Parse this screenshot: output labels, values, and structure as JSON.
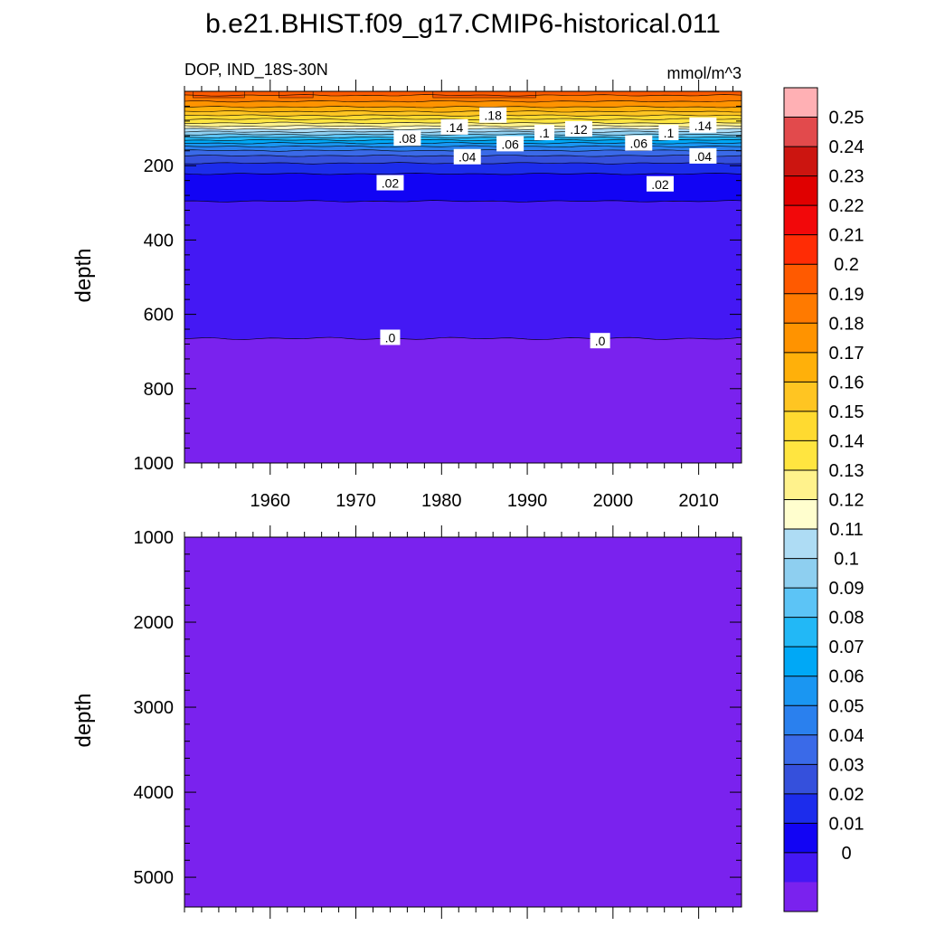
{
  "title": "b.e21.BHIST.f09_g17.CMIP6-historical.011",
  "chart_data": {
    "type": "heatmap",
    "variable_label": "DOP, IND_18S-30N",
    "units": "mmol/m^3",
    "xlim": [
      1950,
      2015
    ],
    "x_ticks": [
      1960,
      1970,
      1980,
      1990,
      2000,
      2010
    ],
    "panels": [
      {
        "ylabel": "depth",
        "ylim": [
          0,
          1000
        ],
        "y_ticks": [
          200,
          400,
          600,
          800,
          1000
        ],
        "contour_labels": [
          {
            "text": ".18",
            "x": 1986,
            "depth": 65
          },
          {
            "text": ".14",
            "x": 1981.5,
            "depth": 97
          },
          {
            "text": ".14",
            "x": 2010.5,
            "depth": 92
          },
          {
            "text": ".12",
            "x": 1996,
            "depth": 102
          },
          {
            "text": ".1",
            "x": 1992,
            "depth": 112
          },
          {
            "text": ".1",
            "x": 2006.5,
            "depth": 112
          },
          {
            "text": ".08",
            "x": 1976,
            "depth": 127
          },
          {
            "text": ".06",
            "x": 1988,
            "depth": 142
          },
          {
            "text": ".06",
            "x": 2003,
            "depth": 140
          },
          {
            "text": ".04",
            "x": 1983,
            "depth": 177
          },
          {
            "text": ".04",
            "x": 2010.5,
            "depth": 175
          },
          {
            "text": ".02",
            "x": 1974,
            "depth": 247
          },
          {
            "text": ".02",
            "x": 2005.5,
            "depth": 250
          },
          {
            "text": ".0",
            "x": 1974,
            "depth": 663
          },
          {
            "text": ".0",
            "x": 1998.5,
            "depth": 672
          }
        ]
      },
      {
        "ylabel": "depth",
        "ylim": [
          1000,
          5350
        ],
        "y_ticks": [
          1000,
          2000,
          3000,
          4000,
          5000
        ],
        "fill_level": 0
      }
    ],
    "colorbar": {
      "levels": [
        "0.25",
        "0.24",
        "0.23",
        "0.22",
        "0.21",
        "0.2",
        "0.19",
        "0.18",
        "0.17",
        "0.16",
        "0.15",
        "0.14",
        "0.13",
        "0.12",
        "0.11",
        "0.1",
        "0.09",
        "0.08",
        "0.07",
        "0.06",
        "0.05",
        "0.04",
        "0.03",
        "0.02",
        "0.01",
        "0"
      ],
      "colors": [
        "#FFB0B4",
        "#E24A4C",
        "#CC1510",
        "#E00000",
        "#F2080A",
        "#FF2C05",
        "#FF5A00",
        "#FF7A00",
        "#FF9300",
        "#FFB00A",
        "#FFC522",
        "#FFDA30",
        "#FFE540",
        "#FFF28C",
        "#FFFECE",
        "#AEDCF4",
        "#8ECFF0",
        "#5CC4F6",
        "#22B8F6",
        "#00A8F6",
        "#1A96F2",
        "#2A80EE",
        "#3A6AE8",
        "#3550DC",
        "#1C2CEC",
        "#1204F4",
        "#4418F4",
        "#7A22EE"
      ]
    },
    "profile": [
      {
        "depth": 0,
        "value": 0.205
      },
      {
        "depth": 15,
        "value": 0.198
      },
      {
        "depth": 30,
        "value": 0.188
      },
      {
        "depth": 45,
        "value": 0.178
      },
      {
        "depth": 60,
        "value": 0.165
      },
      {
        "depth": 75,
        "value": 0.15
      },
      {
        "depth": 90,
        "value": 0.135
      },
      {
        "depth": 105,
        "value": 0.115
      },
      {
        "depth": 120,
        "value": 0.095
      },
      {
        "depth": 135,
        "value": 0.075
      },
      {
        "depth": 150,
        "value": 0.058
      },
      {
        "depth": 165,
        "value": 0.045
      },
      {
        "depth": 180,
        "value": 0.036
      },
      {
        "depth": 200,
        "value": 0.027
      },
      {
        "depth": 225,
        "value": 0.019
      },
      {
        "depth": 260,
        "value": 0.014
      },
      {
        "depth": 300,
        "value": 0.0095
      },
      {
        "depth": 450,
        "value": 0.006
      },
      {
        "depth": 600,
        "value": 0.003
      },
      {
        "depth": 665,
        "value": 0.0
      },
      {
        "depth": 5350,
        "value": -0.002
      }
    ]
  }
}
